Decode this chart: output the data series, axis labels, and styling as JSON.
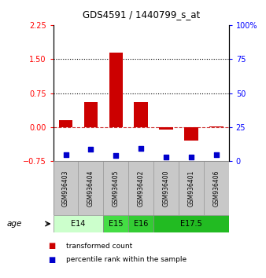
{
  "title": "GDS4591 / 1440799_s_at",
  "samples": [
    "GSM936403",
    "GSM936404",
    "GSM936405",
    "GSM936402",
    "GSM936400",
    "GSM936401",
    "GSM936406"
  ],
  "red_values": [
    0.15,
    0.55,
    1.65,
    0.55,
    -0.05,
    -0.3,
    0.02
  ],
  "blue_values": [
    5.0,
    9.0,
    4.5,
    9.5,
    3.0,
    3.0,
    5.0
  ],
  "ylim_left": [
    -0.75,
    2.25
  ],
  "ylim_right": [
    0,
    100
  ],
  "yticks_left": [
    -0.75,
    0,
    0.75,
    1.5,
    2.25
  ],
  "yticks_right": [
    0,
    25,
    50,
    75,
    100
  ],
  "hlines": [
    0.75,
    1.5
  ],
  "age_groups": [
    {
      "label": "E14",
      "start": 0,
      "end": 2,
      "color": "#ccffcc"
    },
    {
      "label": "E15",
      "start": 2,
      "end": 3,
      "color": "#44dd44"
    },
    {
      "label": "E16",
      "start": 3,
      "end": 4,
      "color": "#33cc33"
    },
    {
      "label": "E17.5",
      "start": 4,
      "end": 7,
      "color": "#22bb22"
    }
  ],
  "red_color": "#cc0000",
  "blue_color": "#0000cc",
  "dashed_line_color": "#cc3333",
  "dotted_line_color": "#000000",
  "bar_width": 0.55,
  "blue_marker_size": 18,
  "bg_color": "#ffffff",
  "plot_bg": "#ffffff",
  "legend_red_label": "transformed count",
  "legend_blue_label": "percentile rank within the sample",
  "sample_box_color": "#c8c8c8",
  "sample_box_edge": "#999999"
}
